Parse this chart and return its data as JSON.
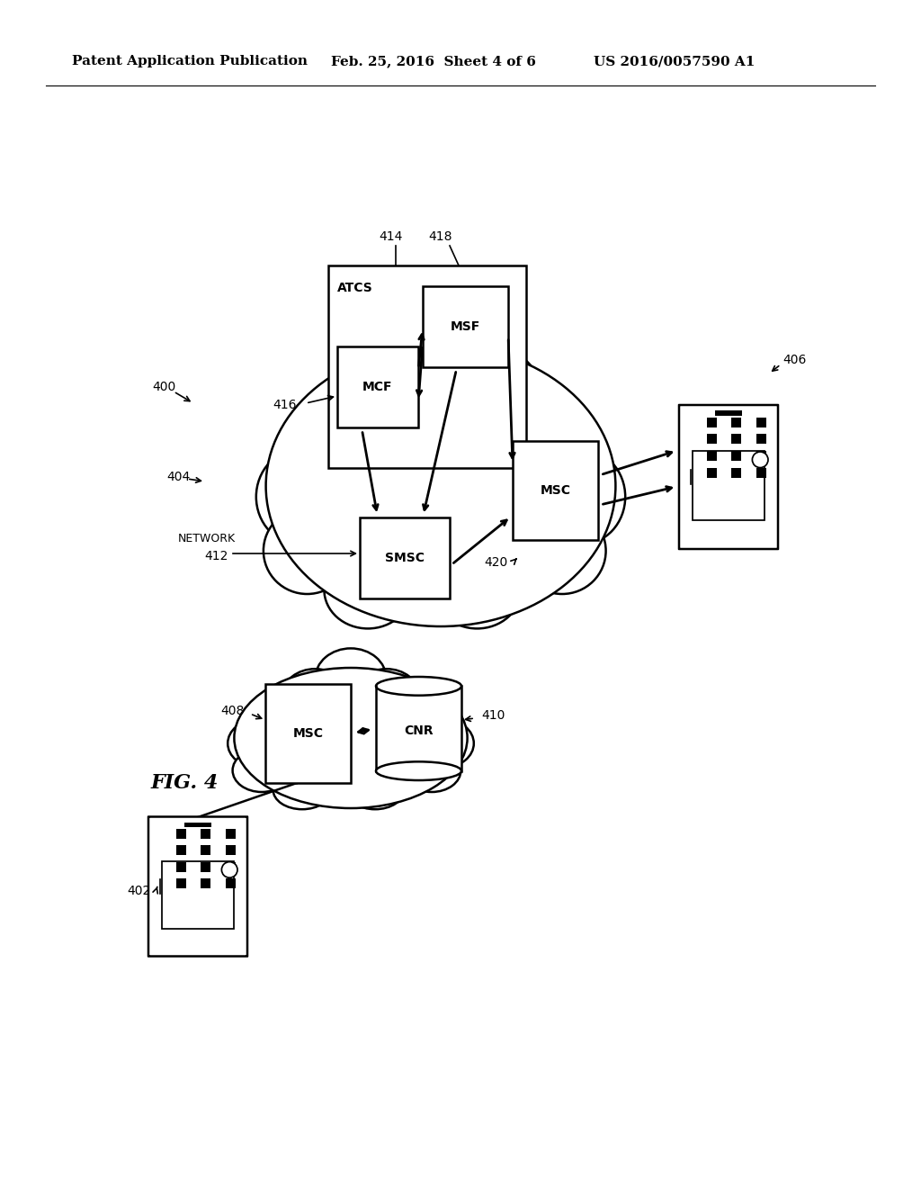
{
  "title_left": "Patent Application Publication",
  "title_mid": "Feb. 25, 2016  Sheet 4 of 6",
  "title_right": "US 2016/0057590 A1",
  "fig_label": "FIG. 4",
  "background_color": "#ffffff",
  "line_color": "#000000"
}
